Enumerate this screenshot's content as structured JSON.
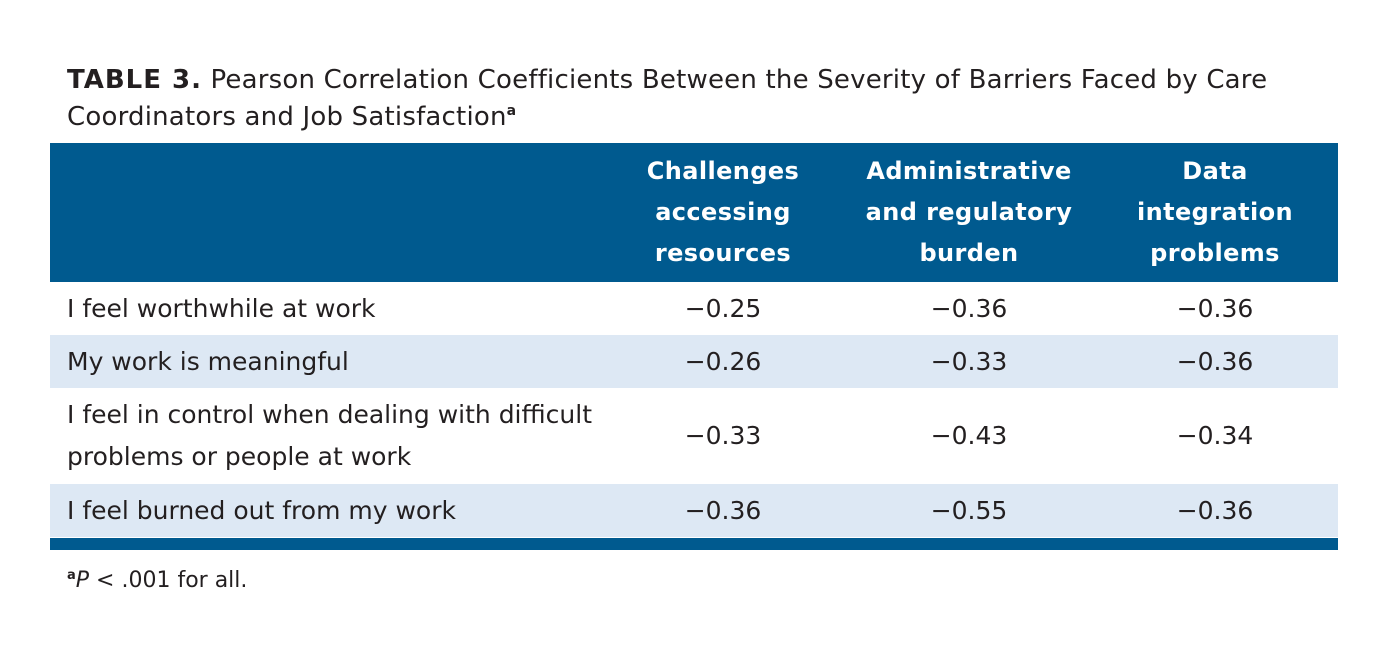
{
  "table": {
    "label": "TABLE 3.",
    "title": "Pearson Correlation Coefficients Between the Severity of Barriers Faced by Care Coordinators and Job Satisfaction",
    "title_superscript": "a",
    "columns": [
      "",
      "Challenges accessing resources",
      "Administrative and regulatory burden",
      "Data integration problems"
    ],
    "rows": [
      {
        "label": "I feel worthwhile at work",
        "values": [
          "−0.25",
          "−0.36",
          "−0.36"
        ]
      },
      {
        "label": "My work is meaningful",
        "values": [
          "−0.26",
          "−0.33",
          "−0.36"
        ]
      },
      {
        "label": "I feel in control when dealing with difficult problems or people at work",
        "values": [
          "−0.33",
          "−0.43",
          "−0.34"
        ]
      },
      {
        "label": "I feel burned out from my work",
        "values": [
          "−0.36",
          "−0.55",
          "−0.36"
        ]
      }
    ]
  },
  "footnote": {
    "marker": "a",
    "variable": "P",
    "text": " < .001 for all."
  },
  "colors": {
    "header_background": "#005a8f",
    "header_text": "#ffffff",
    "shaded_row": "#dde8f4",
    "body_text": "#231f20"
  }
}
